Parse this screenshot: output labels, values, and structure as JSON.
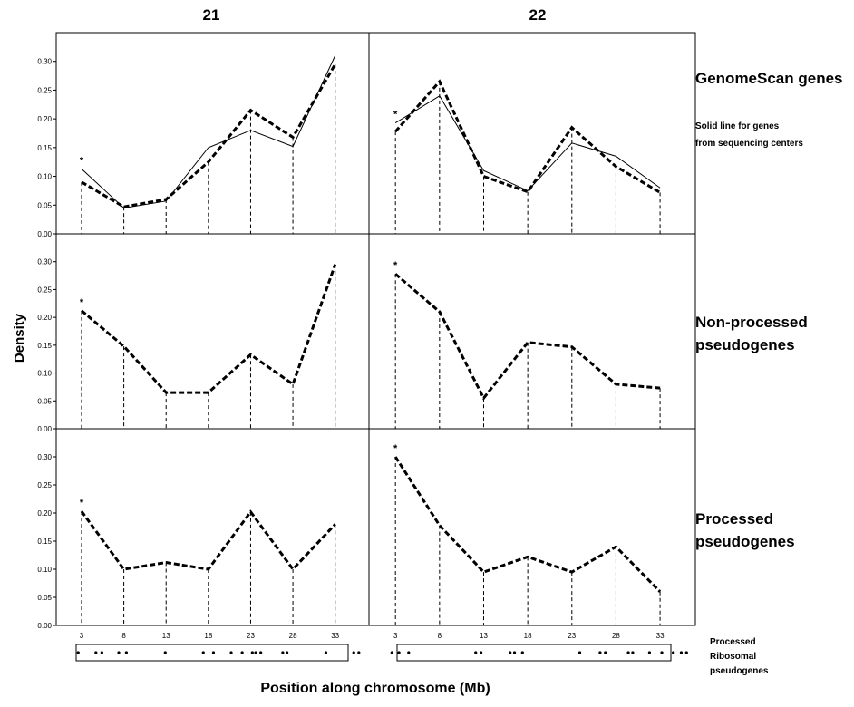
{
  "columns": [
    "21",
    "22"
  ],
  "row_labels": [
    [
      "GenomeScan genes"
    ],
    [
      "Non-processed",
      "pseudogenes"
    ],
    [
      "Processed",
      "pseudogenes"
    ]
  ],
  "solid_note": [
    "Solid line for genes",
    "from sequencing centers"
  ],
  "ylabel": "Density",
  "xlabel": "Position along chromosome (Mb)",
  "bottom_legend": [
    "Processed",
    "Ribosomal",
    "pseudogenes"
  ],
  "marker": "*",
  "colors": {
    "line": "#000000"
  },
  "chart_data": {
    "type": "line",
    "x": [
      3,
      8,
      13,
      18,
      23,
      28,
      33
    ],
    "xticks": [
      "3",
      "8",
      "13",
      "18",
      "23",
      "28",
      "33"
    ],
    "yticks": [
      "0.00",
      "0.05",
      "0.10",
      "0.15",
      "0.20",
      "0.25",
      "0.30"
    ],
    "ylim": [
      0,
      0.35
    ],
    "panels": [
      {
        "row": 0,
        "col": 0,
        "dashed": [
          0.09,
          0.047,
          0.06,
          0.125,
          0.215,
          0.168,
          0.295
        ],
        "solid": [
          0.113,
          0.045,
          0.057,
          0.15,
          0.18,
          0.152,
          0.31
        ]
      },
      {
        "row": 0,
        "col": 1,
        "dashed": [
          0.178,
          0.265,
          0.1,
          0.073,
          0.185,
          0.117,
          0.072
        ],
        "solid": [
          0.193,
          0.24,
          0.11,
          0.075,
          0.158,
          0.135,
          0.08
        ]
      },
      {
        "row": 1,
        "col": 0,
        "dashed": [
          0.212,
          0.148,
          0.065,
          0.065,
          0.133,
          0.08,
          0.295
        ]
      },
      {
        "row": 1,
        "col": 1,
        "dashed": [
          0.278,
          0.21,
          0.055,
          0.155,
          0.147,
          0.08,
          0.073
        ]
      },
      {
        "row": 2,
        "col": 0,
        "dashed": [
          0.203,
          0.1,
          0.112,
          0.1,
          0.202,
          0.1,
          0.18
        ]
      },
      {
        "row": 2,
        "col": 1,
        "dashed": [
          0.3,
          0.178,
          0.095,
          0.122,
          0.095,
          0.14,
          0.06
        ]
      }
    ],
    "ribosomal_positions": [
      [
        2.6,
        4.7,
        5.4,
        7.4,
        8.3,
        12.9,
        17.4,
        18.6,
        20.7,
        22.0,
        23.2,
        23.6,
        24.2,
        26.8,
        27.3,
        31.9,
        35.2,
        35.8
      ],
      [
        2.6,
        3.4,
        4.5,
        12.1,
        12.7,
        16.0,
        16.5,
        17.4,
        23.9,
        26.2,
        26.8,
        29.4,
        29.9,
        31.8,
        33.2,
        34.5,
        35.4,
        36.0
      ]
    ]
  }
}
